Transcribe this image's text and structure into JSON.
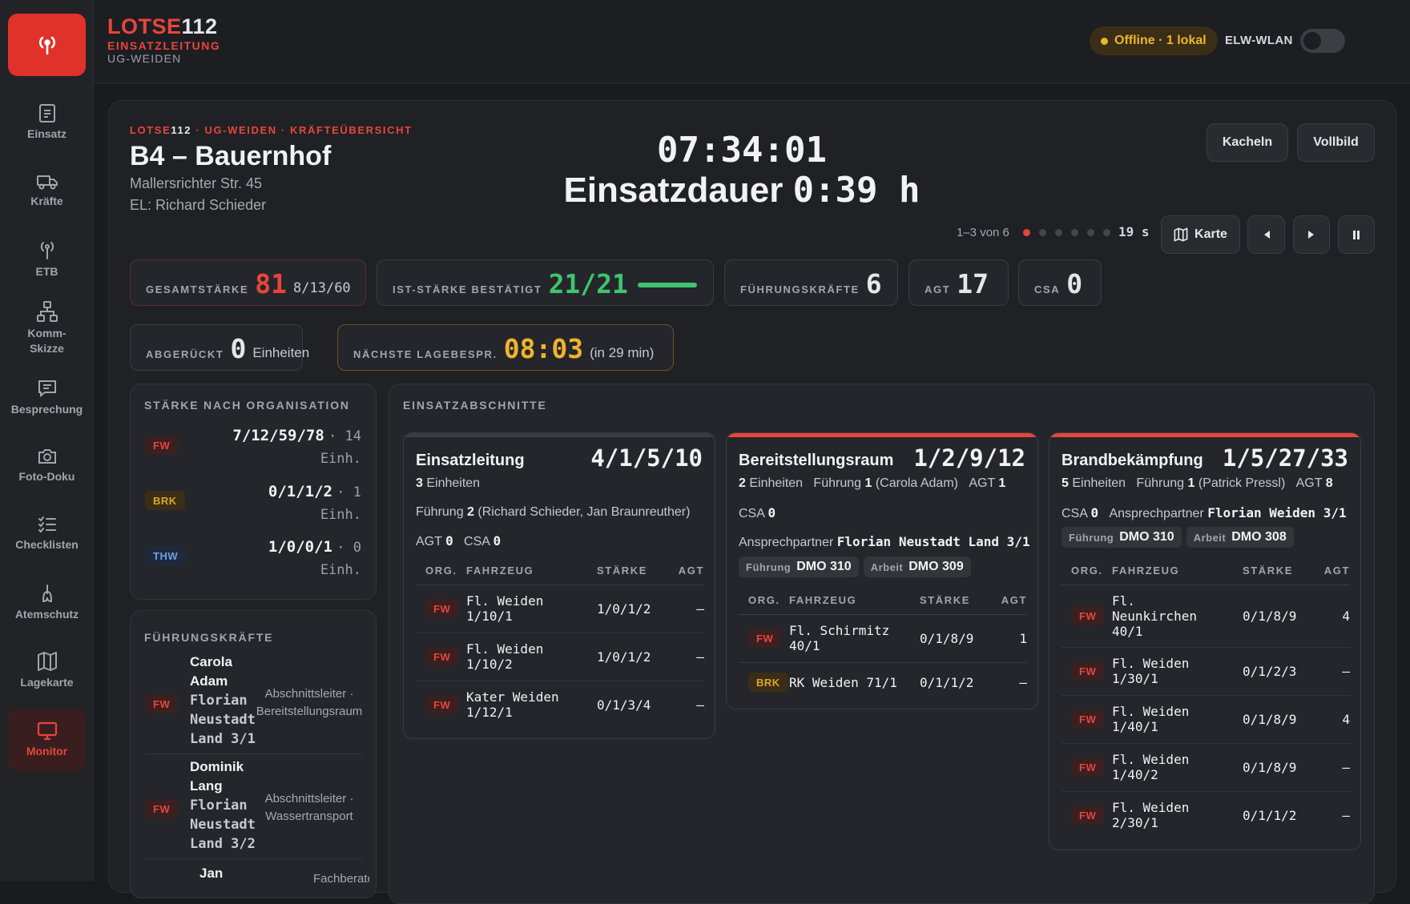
{
  "brand": {
    "name_red": "LOTSE",
    "name_white": "112",
    "sub": "EINSATZLEITUNG",
    "unit": "UG-WEIDEN"
  },
  "nav": [
    {
      "label": "Einsatz"
    },
    {
      "label": "Kräfte"
    },
    {
      "label": "ETB"
    },
    {
      "label": "Komm-Skizze"
    },
    {
      "label": "Besprechung"
    },
    {
      "label": "Foto-Doku"
    },
    {
      "label": "Checklisten"
    },
    {
      "label": "Atemschutz"
    },
    {
      "label": "Lagekarte"
    },
    {
      "label": "Monitor"
    }
  ],
  "status": {
    "offline": "Offline · 1 lokal",
    "wlan": "ELW-WLAN",
    "accent": "#e8453c",
    "warn": "#f0b429",
    "ok": "#3ec46d"
  },
  "header": {
    "crumb_red1": "LOTSE",
    "crumb_white": "112",
    "crumb_red2": " · UG-WEIDEN · KRÄFTEÜBERSICHT",
    "title": "B4 – Bauernhof",
    "address": "Mallersrichter Str. 45",
    "leader": "EL: Richard Schieder",
    "clock": "07:34:01",
    "duration_label": "Einsatzdauer",
    "duration_value": "0:39 h"
  },
  "controls": {
    "tiles": "Kacheln",
    "fullscreen": "Vollbild",
    "pager": "1–3 von 6",
    "seconds": "19 s",
    "map": "Karte"
  },
  "stats": {
    "total_label": "GESAMTSTÄRKE",
    "total_value": "81",
    "total_sub": "8/13/60",
    "confirmed_label": "IST-STÄRKE BESTÄTIGT",
    "confirmed_value": "21/21",
    "leaders_label": "FÜHRUNGSKRÄFTE",
    "leaders_value": "6",
    "agt_label": "AGT",
    "agt_value": "17",
    "csa_label": "CSA",
    "csa_value": "0",
    "left_label": "ABGERÜCKT",
    "left_value": "0",
    "left_sub": "Einheiten",
    "next_label": "NÄCHSTE LAGEBESPR.",
    "next_value": "08:03",
    "next_sub": "(in 29 min)"
  },
  "by_org": {
    "title": "STÄRKE NACH ORGANISATION",
    "rows": [
      {
        "org": "FW",
        "value": "7/12/59/78",
        "units": "· 14",
        "units2": "Einh."
      },
      {
        "org": "BRK",
        "value": "0/1/1/2",
        "units": "· 1",
        "units2": "Einh."
      },
      {
        "org": "THW",
        "value": "1/0/0/1",
        "units": "· 0",
        "units2": "Einh."
      }
    ]
  },
  "leaders": {
    "title": "FÜHRUNGSKRÄFTE",
    "rows": [
      {
        "org": "FW",
        "first": "Carola",
        "last": "Adam",
        "u1": "Florian",
        "u2": "Neustadt",
        "u3": "Land 3/1",
        "role1": "Abschnittsleiter ·",
        "role2": "Bereitstellungsraum"
      },
      {
        "org": "FW",
        "first": "Dominik",
        "last": "Lang",
        "u1": "Florian",
        "u2": "Neustadt",
        "u3": "Land 3/2",
        "role1": "Abschnittsleiter ·",
        "role2": "Wassertransport"
      },
      {
        "org": "FW",
        "first": "Jan",
        "last": "",
        "u1": "",
        "u2": "",
        "u3": "",
        "role1": "Fachberater",
        "role2": ""
      }
    ]
  },
  "sections": {
    "title": "EINSATZABSCHNITTE",
    "cols": {
      "org": "ORG.",
      "vehicle": "FAHRZEUG",
      "strength": "STÄRKE",
      "agt": "AGT"
    },
    "items": [
      {
        "name": "Einsatzleitung",
        "value": "4/1/5/10",
        "units_n": "3",
        "units_t": "Einheiten",
        "lead_t": "Führung",
        "lead_n": "2",
        "lead_names": "(Richard Schieder, Jan Braunreuther)",
        "agt_t": "AGT",
        "agt_n": "0",
        "csa_t": "CSA",
        "csa_n": "0",
        "vehicles": [
          {
            "org": "FW",
            "l1": "Fl. Weiden",
            "l2": "1/10/1",
            "s": "1/0/1/2",
            "agt": "–"
          },
          {
            "org": "FW",
            "l1": "Fl. Weiden",
            "l2": "1/10/2",
            "s": "1/0/1/2",
            "agt": "–"
          },
          {
            "org": "FW",
            "l1": "Kater Weiden",
            "l2": "1/12/1",
            "s": "0/1/3/4",
            "agt": "–"
          }
        ]
      },
      {
        "name": "Bereitstellungsraum",
        "value": "1/2/9/12",
        "units_n": "2",
        "units_t": "Einheiten",
        "lead_t": "Führung",
        "lead_n": "1",
        "lead_names": "(Carola Adam)",
        "agt_t": "AGT",
        "agt_n": "1",
        "csa_t": "CSA",
        "csa_n": "0",
        "contact_t": "Ansprechpartner",
        "contact": "Florian Neustadt Land 3/1",
        "chip1_t": "Führung",
        "chip1": "DMO 310",
        "chip2_t": "Arbeit",
        "chip2": "DMO 309",
        "vehicles": [
          {
            "org": "FW",
            "l1": "Fl. Schirmitz",
            "l2": "40/1",
            "s": "0/1/8/9",
            "agt": "1"
          },
          {
            "org": "BRK",
            "l1": "RK Weiden 71/1",
            "l2": "",
            "s": "0/1/1/2",
            "agt": "–"
          }
        ]
      },
      {
        "name": "Brandbekämpfung",
        "value": "1/5/27/33",
        "units_n": "5",
        "units_t": "Einheiten",
        "lead_t": "Führung",
        "lead_n": "1",
        "lead_names": "(Patrick Pressl)",
        "agt_t": "AGT",
        "agt_n": "8",
        "csa_t": "CSA",
        "csa_n": "0",
        "contact_t": "Ansprechpartner",
        "contact": "Florian Weiden 3/1",
        "chip1_t": "Führung",
        "chip1": "DMO 310",
        "chip2_t": "Arbeit",
        "chip2": "DMO 308",
        "vehicles": [
          {
            "org": "FW",
            "l1": "Fl.",
            "l2": "Neunkirchen",
            "l3": "40/1",
            "s": "0/1/8/9",
            "agt": "4"
          },
          {
            "org": "FW",
            "l1": "Fl. Weiden",
            "l2": "1/30/1",
            "s": "0/1/2/3",
            "agt": "–"
          },
          {
            "org": "FW",
            "l1": "Fl. Weiden",
            "l2": "1/40/1",
            "s": "0/1/8/9",
            "agt": "4"
          },
          {
            "org": "FW",
            "l1": "Fl. Weiden",
            "l2": "1/40/2",
            "s": "0/1/8/9",
            "agt": "–"
          },
          {
            "org": "FW",
            "l1": "Fl. Weiden",
            "l2": "2/30/1",
            "s": "0/1/1/2",
            "agt": "–"
          }
        ]
      }
    ]
  }
}
